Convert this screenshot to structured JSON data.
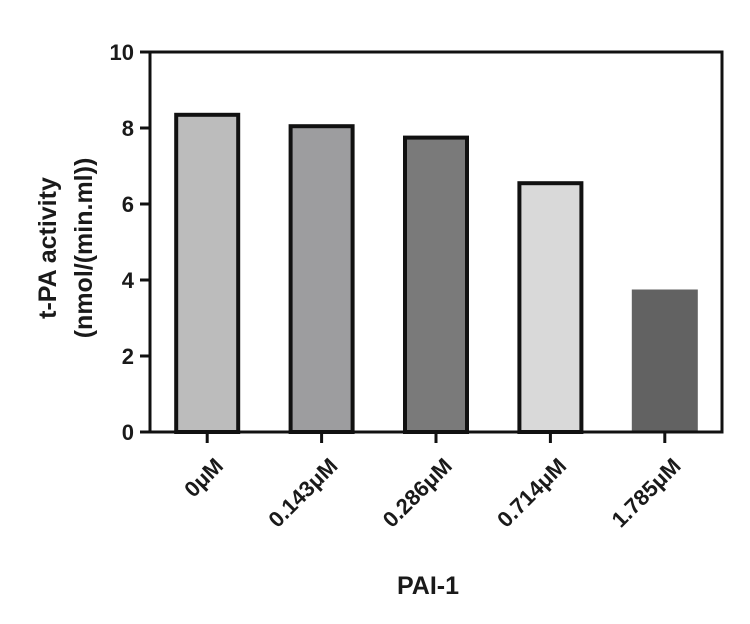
{
  "chart_data": {
    "type": "bar",
    "title": "",
    "xlabel": "PAI-1",
    "ylabel_lines": [
      "t-PA activity",
      "(nmol/(min.ml))"
    ],
    "categories": [
      "0μM",
      "0.143μM",
      "0.286μM",
      "0.714μM",
      "1.785μM"
    ],
    "values": [
      8.4,
      8.1,
      7.8,
      6.6,
      3.75
    ],
    "bar_colors": [
      "#bcbcbc",
      "#9d9d9f",
      "#7a7a7a",
      "#d9d9d9",
      "#626262"
    ],
    "bar_outline": [
      true,
      true,
      true,
      true,
      false
    ],
    "ylim": [
      0,
      10
    ],
    "yticks": [
      0,
      2,
      4,
      6,
      8,
      10
    ],
    "grid": false
  }
}
